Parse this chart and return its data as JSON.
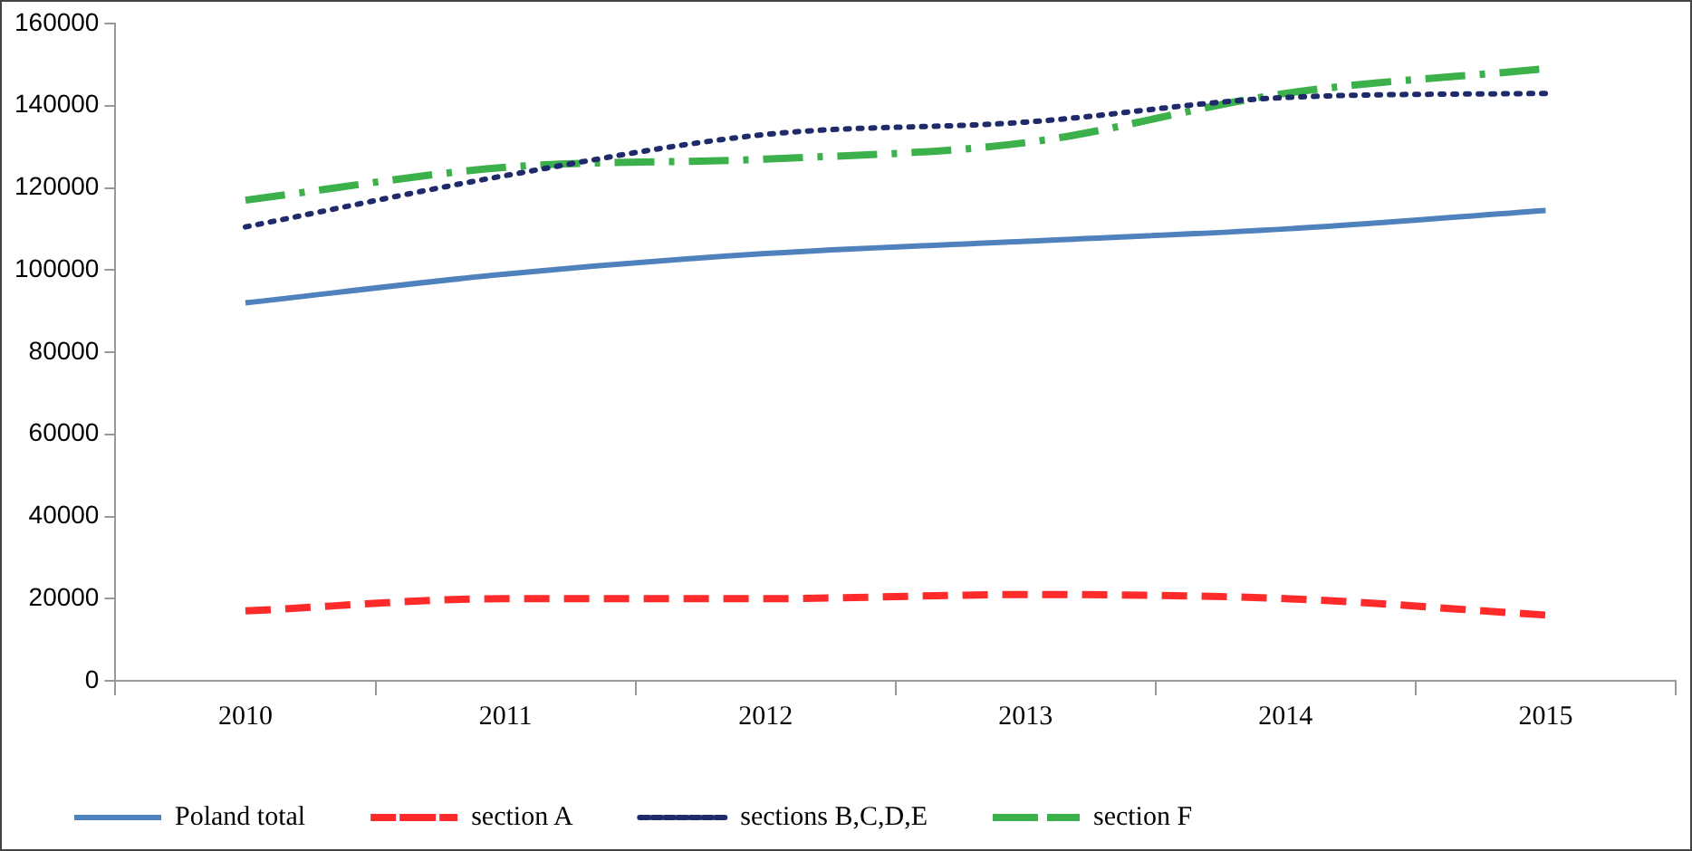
{
  "chart_data": {
    "type": "line",
    "categories": [
      "2010",
      "2011",
      "2012",
      "2013",
      "2014",
      "2015"
    ],
    "series": [
      {
        "name": "Poland total",
        "color": "#4f81bd",
        "line_style": "solid",
        "values": [
          92000,
          99000,
          104000,
          107000,
          110000,
          114500
        ]
      },
      {
        "name": "section A",
        "color": "#ff2a2a",
        "line_style": "dashed",
        "values": [
          17000,
          20000,
          20000,
          21000,
          20000,
          16000
        ]
      },
      {
        "name": "sections B,C,D,E",
        "color": "#1f2a6b",
        "line_style": "dotted",
        "values": [
          110500,
          123000,
          133000,
          136000,
          142000,
          143000
        ]
      },
      {
        "name": "section F",
        "color": "#3cb04a",
        "line_style": "dashdot",
        "values": [
          117000,
          125000,
          127000,
          131000,
          143000,
          149000
        ]
      }
    ],
    "ylim": [
      0,
      160000
    ],
    "yticks": [
      0,
      20000,
      40000,
      60000,
      80000,
      100000,
      120000,
      140000,
      160000
    ],
    "grid": false,
    "legend": "bottom",
    "marker": "none"
  }
}
